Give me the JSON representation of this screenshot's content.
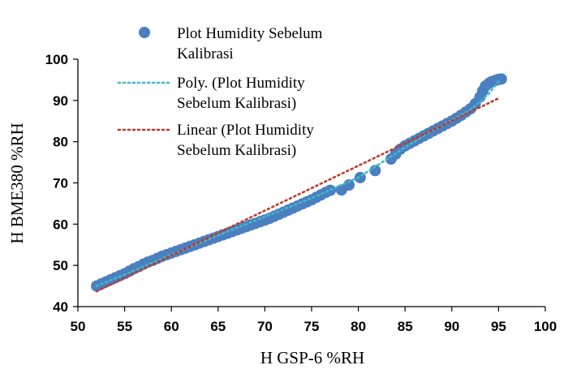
{
  "chart_data": {
    "type": "scatter",
    "xlabel": "H GSP-6 %RH",
    "ylabel": "H BME380 %RH",
    "xlim": [
      50,
      100
    ],
    "ylim": [
      40,
      100
    ],
    "x_ticks": [
      "50",
      "55",
      "60",
      "65",
      "70",
      "75",
      "80",
      "85",
      "90",
      "95",
      "100"
    ],
    "y_ticks": [
      "40",
      "50",
      "60",
      "70",
      "80",
      "90",
      "100"
    ],
    "grid": false,
    "legend_position": "top",
    "series": [
      {
        "name": "Plot Humidity Sebelum Kalibrasi",
        "kind": "markers",
        "color": "#4a7fc0",
        "x": [
          52.0,
          52.5,
          53.0,
          53.5,
          54.0,
          54.5,
          55.0,
          55.5,
          56.0,
          56.5,
          57.0,
          57.5,
          58.0,
          58.5,
          59.0,
          59.5,
          60.0,
          60.5,
          61.0,
          61.5,
          62.0,
          62.5,
          63.0,
          63.5,
          64.0,
          64.5,
          65.0,
          65.5,
          66.0,
          66.5,
          67.0,
          67.5,
          68.0,
          68.5,
          69.0,
          69.5,
          70.0,
          70.5,
          71.0,
          71.5,
          72.0,
          72.5,
          73.0,
          73.5,
          74.0,
          74.5,
          75.0,
          75.5,
          76.0,
          76.5,
          77.0,
          78.2,
          79.0,
          80.2,
          81.8,
          83.5,
          84.0,
          84.5,
          85.0,
          85.5,
          86.0,
          86.5,
          87.0,
          87.5,
          88.0,
          88.5,
          89.0,
          89.5,
          90.0,
          90.5,
          91.0,
          91.5,
          92.0,
          92.5,
          93.0,
          93.3,
          93.6,
          94.0,
          94.3,
          94.7,
          95.0,
          95.3
        ],
        "y": [
          45.0,
          45.5,
          46.0,
          46.5,
          47.0,
          47.5,
          48.0,
          48.6,
          49.2,
          49.7,
          50.3,
          50.8,
          51.2,
          51.7,
          52.2,
          52.6,
          53.0,
          53.4,
          53.8,
          54.2,
          54.6,
          55.0,
          55.4,
          55.8,
          56.2,
          56.6,
          57.0,
          57.4,
          57.8,
          58.2,
          58.6,
          59.0,
          59.4,
          59.8,
          60.2,
          60.6,
          61.0,
          61.4,
          61.9,
          62.4,
          62.9,
          63.4,
          63.9,
          64.4,
          64.9,
          65.4,
          65.9,
          66.5,
          67.1,
          67.7,
          68.2,
          68.3,
          69.5,
          71.3,
          73.0,
          75.8,
          77.0,
          78.2,
          79.0,
          79.6,
          80.2,
          80.8,
          81.4,
          82.0,
          82.6,
          83.2,
          83.8,
          84.4,
          85.0,
          85.7,
          86.4,
          87.2,
          88.0,
          89.2,
          90.8,
          92.3,
          93.5,
          94.2,
          94.6,
          94.9,
          95.1,
          95.2
        ]
      },
      {
        "name": "Poly. (Plot Humidity Sebelum Kalibrasi)",
        "kind": "dotted-line",
        "color": "#3fb8cc",
        "x": [
          52,
          55,
          60,
          65,
          70,
          75,
          80,
          85,
          88,
          90,
          92,
          93,
          94,
          95
        ],
        "y": [
          45.0,
          47.8,
          52.6,
          57.3,
          61.8,
          66.3,
          71.3,
          78.6,
          82.8,
          85.2,
          87.8,
          89.6,
          91.8,
          94.6
        ]
      },
      {
        "name": "Linear (Plot Humidity Sebelum Kalibrasi)",
        "kind": "dotted-line",
        "color": "#c0392b",
        "x": [
          52,
          95
        ],
        "y": [
          43.7,
          90.5
        ]
      }
    ],
    "legend": {
      "entries": [
        {
          "lines": [
            "Plot Humidity Sebelum",
            "Kalibrasi"
          ]
        },
        {
          "lines": [
            "Poly. (Plot Humidity",
            "Sebelum Kalibrasi)"
          ]
        },
        {
          "lines": [
            "Linear (Plot Humidity",
            "Sebelum Kalibrasi)"
          ]
        }
      ]
    }
  }
}
